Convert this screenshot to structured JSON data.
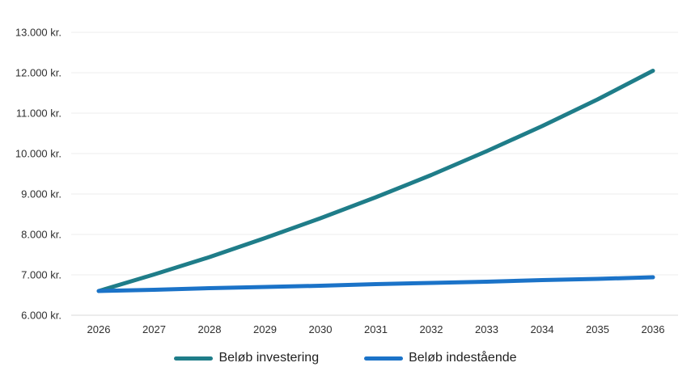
{
  "chart_data": {
    "type": "line",
    "title": "",
    "xlabel": "",
    "ylabel": "",
    "grid": true,
    "legend_position": "bottom",
    "ylim": [
      6000,
      13000
    ],
    "currency_suffix": "kr.",
    "categories": [
      "2026",
      "2027",
      "2028",
      "2029",
      "2030",
      "2031",
      "2032",
      "2033",
      "2034",
      "2035",
      "2036"
    ],
    "yticks": [
      {
        "value": 6000,
        "label": "6.000 kr."
      },
      {
        "value": 7000,
        "label": "7.000 kr."
      },
      {
        "value": 8000,
        "label": "8.000 kr."
      },
      {
        "value": 9000,
        "label": "9.000 kr."
      },
      {
        "value": 10000,
        "label": "10.000 kr."
      },
      {
        "value": 11000,
        "label": "11.000 kr."
      },
      {
        "value": 12000,
        "label": "12.000 kr."
      },
      {
        "value": 13000,
        "label": "13.000 kr."
      }
    ],
    "series": [
      {
        "name": "Beløb investering",
        "color": "#1f7d89",
        "values": [
          6600,
          7010,
          7440,
          7910,
          8400,
          8920,
          9470,
          10060,
          10680,
          11340,
          12050
        ]
      },
      {
        "name": "Beløb indestående",
        "color": "#1b73c8",
        "values": [
          6600,
          6630,
          6670,
          6700,
          6730,
          6770,
          6800,
          6830,
          6870,
          6900,
          6940
        ]
      }
    ],
    "colors": {
      "grid": "#ececec",
      "axis": "#d8d8d8",
      "tick_text": "#2f2f2f",
      "legend_text": "#1f1f1f",
      "background": "#ffffff"
    }
  }
}
